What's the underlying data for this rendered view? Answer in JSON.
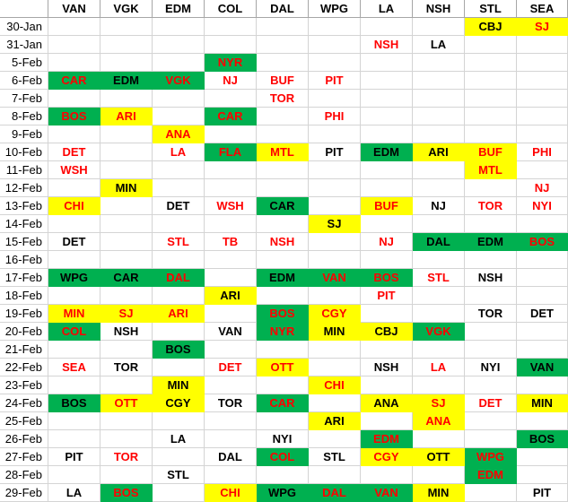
{
  "colors": {
    "green": "#00B050",
    "yellow": "#FFFF00",
    "white": "#FFFFFF",
    "red_text": "#FF0000",
    "black_text": "#000000",
    "grid": "#D4D4D4"
  },
  "corner_label": "",
  "columns": [
    "VAN",
    "VGK",
    "EDM",
    "COL",
    "DAL",
    "WPG",
    "LA",
    "NSH",
    "STL",
    "SEA"
  ],
  "rows": [
    {
      "date": "30-Jan",
      "cells": {
        "STL": {
          "t": "CBJ",
          "bg": "y",
          "fg": "b"
        },
        "SEA": {
          "t": "SJ",
          "bg": "y",
          "fg": "r"
        }
      }
    },
    {
      "date": "31-Jan",
      "cells": {
        "LA": {
          "t": "NSH",
          "bg": "w",
          "fg": "r"
        },
        "NSH": {
          "t": "LA",
          "bg": "w",
          "fg": "b"
        }
      }
    },
    {
      "date": "5-Feb",
      "cells": {
        "COL": {
          "t": "NYR",
          "bg": "g",
          "fg": "r"
        }
      }
    },
    {
      "date": "6-Feb",
      "cells": {
        "VAN": {
          "t": "CAR",
          "bg": "g",
          "fg": "r"
        },
        "VGK": {
          "t": "EDM",
          "bg": "g",
          "fg": "b"
        },
        "EDM": {
          "t": "VGK",
          "bg": "g",
          "fg": "r"
        },
        "COL": {
          "t": "NJ",
          "bg": "w",
          "fg": "r"
        },
        "DAL": {
          "t": "BUF",
          "bg": "w",
          "fg": "r"
        },
        "WPG": {
          "t": "PIT",
          "bg": "w",
          "fg": "r"
        }
      }
    },
    {
      "date": "7-Feb",
      "cells": {
        "DAL": {
          "t": "TOR",
          "bg": "w",
          "fg": "r"
        }
      }
    },
    {
      "date": "8-Feb",
      "cells": {
        "VAN": {
          "t": "BOS",
          "bg": "g",
          "fg": "r"
        },
        "VGK": {
          "t": "ARI",
          "bg": "y",
          "fg": "r"
        },
        "COL": {
          "t": "CAR",
          "bg": "g",
          "fg": "r"
        },
        "WPG": {
          "t": "PHI",
          "bg": "w",
          "fg": "r"
        }
      }
    },
    {
      "date": "9-Feb",
      "cells": {
        "EDM": {
          "t": "ANA",
          "bg": "y",
          "fg": "r"
        }
      }
    },
    {
      "date": "10-Feb",
      "cells": {
        "VAN": {
          "t": "DET",
          "bg": "w",
          "fg": "r"
        },
        "EDM": {
          "t": "LA",
          "bg": "w",
          "fg": "r"
        },
        "COL": {
          "t": "FLA",
          "bg": "g",
          "fg": "r"
        },
        "DAL": {
          "t": "MTL",
          "bg": "y",
          "fg": "r"
        },
        "WPG": {
          "t": "PIT",
          "bg": "w",
          "fg": "b"
        },
        "LA": {
          "t": "EDM",
          "bg": "g",
          "fg": "b"
        },
        "NSH": {
          "t": "ARI",
          "bg": "y",
          "fg": "b"
        },
        "STL": {
          "t": "BUF",
          "bg": "y",
          "fg": "r"
        },
        "SEA": {
          "t": "PHI",
          "bg": "w",
          "fg": "r"
        }
      }
    },
    {
      "date": "11-Feb",
      "cells": {
        "VAN": {
          "t": "WSH",
          "bg": "w",
          "fg": "r"
        },
        "STL": {
          "t": "MTL",
          "bg": "y",
          "fg": "r"
        }
      }
    },
    {
      "date": "12-Feb",
      "cells": {
        "VGK": {
          "t": "MIN",
          "bg": "y",
          "fg": "b"
        },
        "SEA": {
          "t": "NJ",
          "bg": "w",
          "fg": "r"
        }
      }
    },
    {
      "date": "13-Feb",
      "cells": {
        "VAN": {
          "t": "CHI",
          "bg": "y",
          "fg": "r"
        },
        "EDM": {
          "t": "DET",
          "bg": "w",
          "fg": "b"
        },
        "COL": {
          "t": "WSH",
          "bg": "w",
          "fg": "r"
        },
        "DAL": {
          "t": "CAR",
          "bg": "g",
          "fg": "b"
        },
        "LA": {
          "t": "BUF",
          "bg": "y",
          "fg": "r"
        },
        "NSH": {
          "t": "NJ",
          "bg": "w",
          "fg": "b"
        },
        "STL": {
          "t": "TOR",
          "bg": "w",
          "fg": "r"
        },
        "SEA": {
          "t": "NYI",
          "bg": "w",
          "fg": "r"
        }
      }
    },
    {
      "date": "14-Feb",
      "cells": {
        "WPG": {
          "t": "SJ",
          "bg": "y",
          "fg": "b"
        }
      }
    },
    {
      "date": "15-Feb",
      "cells": {
        "VAN": {
          "t": "DET",
          "bg": "w",
          "fg": "b"
        },
        "EDM": {
          "t": "STL",
          "bg": "w",
          "fg": "r"
        },
        "COL": {
          "t": "TB",
          "bg": "w",
          "fg": "r"
        },
        "DAL": {
          "t": "NSH",
          "bg": "w",
          "fg": "r"
        },
        "LA": {
          "t": "NJ",
          "bg": "w",
          "fg": "r"
        },
        "NSH": {
          "t": "DAL",
          "bg": "g",
          "fg": "b"
        },
        "STL": {
          "t": "EDM",
          "bg": "g",
          "fg": "b"
        },
        "SEA": {
          "t": "BOS",
          "bg": "g",
          "fg": "r"
        }
      }
    },
    {
      "date": "16-Feb",
      "cells": {}
    },
    {
      "date": "17-Feb",
      "cells": {
        "VAN": {
          "t": "WPG",
          "bg": "g",
          "fg": "b"
        },
        "VGK": {
          "t": "CAR",
          "bg": "g",
          "fg": "b"
        },
        "EDM": {
          "t": "DAL",
          "bg": "g",
          "fg": "r"
        },
        "DAL": {
          "t": "EDM",
          "bg": "g",
          "fg": "b"
        },
        "WPG": {
          "t": "VAN",
          "bg": "g",
          "fg": "r"
        },
        "LA": {
          "t": "BOS",
          "bg": "g",
          "fg": "r"
        },
        "NSH": {
          "t": "STL",
          "bg": "w",
          "fg": "r"
        },
        "STL": {
          "t": "NSH",
          "bg": "w",
          "fg": "b"
        }
      }
    },
    {
      "date": "18-Feb",
      "cells": {
        "COL": {
          "t": "ARI",
          "bg": "y",
          "fg": "b"
        },
        "LA": {
          "t": "PIT",
          "bg": "w",
          "fg": "r"
        }
      }
    },
    {
      "date": "19-Feb",
      "cells": {
        "VAN": {
          "t": "MIN",
          "bg": "y",
          "fg": "r"
        },
        "VGK": {
          "t": "SJ",
          "bg": "y",
          "fg": "r"
        },
        "EDM": {
          "t": "ARI",
          "bg": "y",
          "fg": "r"
        },
        "DAL": {
          "t": "BOS",
          "bg": "g",
          "fg": "r"
        },
        "WPG": {
          "t": "CGY",
          "bg": "y",
          "fg": "r"
        },
        "STL": {
          "t": "TOR",
          "bg": "w",
          "fg": "b"
        },
        "SEA": {
          "t": "DET",
          "bg": "w",
          "fg": "b"
        }
      }
    },
    {
      "date": "20-Feb",
      "cells": {
        "VAN": {
          "t": "COL",
          "bg": "g",
          "fg": "r"
        },
        "VGK": {
          "t": "NSH",
          "bg": "w",
          "fg": "b"
        },
        "COL": {
          "t": "VAN",
          "bg": "w",
          "fg": "b"
        },
        "DAL": {
          "t": "NYR",
          "bg": "g",
          "fg": "r"
        },
        "WPG": {
          "t": "MIN",
          "bg": "y",
          "fg": "b"
        },
        "LA": {
          "t": "CBJ",
          "bg": "y",
          "fg": "b"
        },
        "NSH": {
          "t": "VGK",
          "bg": "g",
          "fg": "r"
        }
      }
    },
    {
      "date": "21-Feb",
      "cells": {
        "EDM": {
          "t": "BOS",
          "bg": "g",
          "fg": "b"
        }
      }
    },
    {
      "date": "22-Feb",
      "cells": {
        "VAN": {
          "t": "SEA",
          "bg": "w",
          "fg": "r"
        },
        "VGK": {
          "t": "TOR",
          "bg": "w",
          "fg": "b"
        },
        "COL": {
          "t": "DET",
          "bg": "w",
          "fg": "r"
        },
        "DAL": {
          "t": "OTT",
          "bg": "y",
          "fg": "r"
        },
        "LA": {
          "t": "NSH",
          "bg": "w",
          "fg": "b"
        },
        "NSH": {
          "t": "LA",
          "bg": "w",
          "fg": "r"
        },
        "STL": {
          "t": "NYI",
          "bg": "w",
          "fg": "b"
        },
        "SEA": {
          "t": "VAN",
          "bg": "g",
          "fg": "b"
        }
      }
    },
    {
      "date": "23-Feb",
      "cells": {
        "EDM": {
          "t": "MIN",
          "bg": "y",
          "fg": "b"
        },
        "WPG": {
          "t": "CHI",
          "bg": "y",
          "fg": "r"
        }
      }
    },
    {
      "date": "24-Feb",
      "cells": {
        "VAN": {
          "t": "BOS",
          "bg": "g",
          "fg": "b"
        },
        "VGK": {
          "t": "OTT",
          "bg": "y",
          "fg": "r"
        },
        "EDM": {
          "t": "CGY",
          "bg": "y",
          "fg": "b"
        },
        "COL": {
          "t": "TOR",
          "bg": "w",
          "fg": "b"
        },
        "DAL": {
          "t": "CAR",
          "bg": "g",
          "fg": "r"
        },
        "LA": {
          "t": "ANA",
          "bg": "y",
          "fg": "b"
        },
        "NSH": {
          "t": "SJ",
          "bg": "y",
          "fg": "r"
        },
        "STL": {
          "t": "DET",
          "bg": "w",
          "fg": "r"
        },
        "SEA": {
          "t": "MIN",
          "bg": "y",
          "fg": "b"
        }
      }
    },
    {
      "date": "25-Feb",
      "cells": {
        "WPG": {
          "t": "ARI",
          "bg": "y",
          "fg": "b"
        },
        "NSH": {
          "t": "ANA",
          "bg": "y",
          "fg": "r"
        }
      }
    },
    {
      "date": "26-Feb",
      "cells": {
        "EDM": {
          "t": "LA",
          "bg": "w",
          "fg": "b"
        },
        "DAL": {
          "t": "NYI",
          "bg": "w",
          "fg": "b"
        },
        "LA": {
          "t": "EDM",
          "bg": "g",
          "fg": "r"
        },
        "SEA": {
          "t": "BOS",
          "bg": "g",
          "fg": "b"
        }
      }
    },
    {
      "date": "27-Feb",
      "cells": {
        "VAN": {
          "t": "PIT",
          "bg": "w",
          "fg": "b"
        },
        "VGK": {
          "t": "TOR",
          "bg": "w",
          "fg": "r"
        },
        "COL": {
          "t": "DAL",
          "bg": "w",
          "fg": "b"
        },
        "DAL": {
          "t": "COL",
          "bg": "g",
          "fg": "r"
        },
        "WPG": {
          "t": "STL",
          "bg": "w",
          "fg": "b"
        },
        "LA": {
          "t": "CGY",
          "bg": "y",
          "fg": "r"
        },
        "NSH": {
          "t": "OTT",
          "bg": "y",
          "fg": "b"
        },
        "STL": {
          "t": "WPG",
          "bg": "g",
          "fg": "r"
        }
      }
    },
    {
      "date": "28-Feb",
      "cells": {
        "EDM": {
          "t": "STL",
          "bg": "w",
          "fg": "b"
        },
        "STL": {
          "t": "EDM",
          "bg": "g",
          "fg": "r"
        }
      }
    },
    {
      "date": "29-Feb",
      "cells": {
        "VAN": {
          "t": "LA",
          "bg": "w",
          "fg": "b"
        },
        "VGK": {
          "t": "BOS",
          "bg": "g",
          "fg": "r"
        },
        "COL": {
          "t": "CHI",
          "bg": "y",
          "fg": "r"
        },
        "DAL": {
          "t": "WPG",
          "bg": "g",
          "fg": "b"
        },
        "WPG": {
          "t": "DAL",
          "bg": "g",
          "fg": "r"
        },
        "LA": {
          "t": "VAN",
          "bg": "g",
          "fg": "r"
        },
        "NSH": {
          "t": "MIN",
          "bg": "y",
          "fg": "b"
        },
        "SEA": {
          "t": "PIT",
          "bg": "w",
          "fg": "b"
        }
      }
    }
  ]
}
